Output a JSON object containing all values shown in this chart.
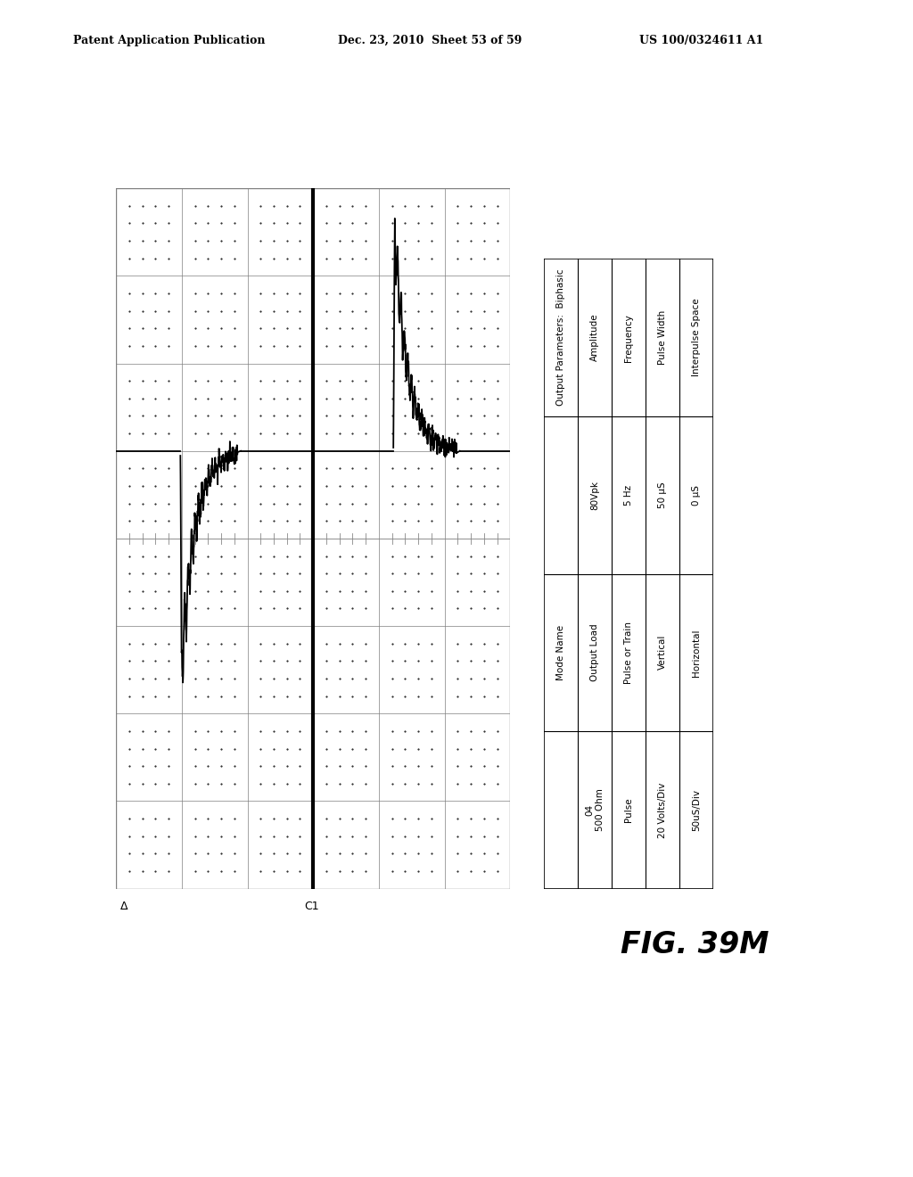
{
  "header_left": "Patent Application Publication",
  "header_center": "Dec. 23, 2010  Sheet 53 of 59",
  "header_right": "US 100/0324611 A1",
  "fig_label": "FIG. 39M",
  "table_rows": [
    {
      "row1": "Mode Name",
      "row2": "Output Parameters:  Biphasic",
      "row3": ""
    }
  ],
  "table_col_labels_top": [
    "Output Parameters:  Biphasic",
    "Amplitude",
    "Frequency",
    "Pulse Width",
    "Interpulse Space"
  ],
  "table_col_values_top": [
    "",
    "80Vpk",
    "5 Hz",
    "50 µS",
    "0 µS"
  ],
  "table_col_labels_bot": [
    "Mode Name",
    "Output Load",
    "Pulse or Train",
    "Vertical",
    "Horizontal"
  ],
  "table_col_values_bot": [
    "",
    "04\n500 Ohm",
    "Pulse",
    "20 Volts/Div",
    "50uS/Div"
  ],
  "oscilloscope": {
    "grid_rows": 8,
    "grid_cols": 6,
    "bg_color": "#ffffff",
    "grid_color": "#808080",
    "dot_color": "#000000",
    "signal_color": "#000000"
  },
  "background_color": "#ffffff",
  "text_color": "#000000"
}
